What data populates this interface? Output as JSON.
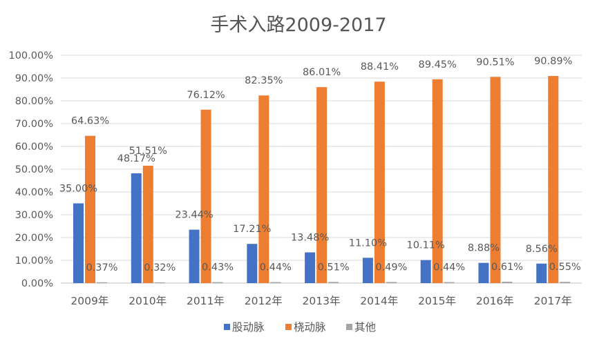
{
  "chart_data": {
    "type": "bar",
    "title": "手术入路2009-2017",
    "categories": [
      "2009年",
      "2010年",
      "2011年",
      "2012年",
      "2013年",
      "2014年",
      "2015年",
      "2016年",
      "2017年"
    ],
    "series": [
      {
        "name": "股动脉",
        "color": "#4472C4",
        "values": [
          35.0,
          48.17,
          23.44,
          17.21,
          13.48,
          11.1,
          10.11,
          8.88,
          8.56
        ],
        "labels": [
          "35.00%",
          "48.17%",
          "23.44%",
          "17.21%",
          "13.48%",
          "11.10%",
          "10.11%",
          "8.88%",
          "8.56%"
        ]
      },
      {
        "name": "桡动脉",
        "color": "#ED7D31",
        "values": [
          64.63,
          51.51,
          76.12,
          82.35,
          86.01,
          88.41,
          89.45,
          90.51,
          90.89
        ],
        "labels": [
          "64.63%",
          "51.51%",
          "76.12%",
          "82.35%",
          "86.01%",
          "88.41%",
          "89.45%",
          "90.51%",
          "90.89%"
        ]
      },
      {
        "name": "其他",
        "color": "#A5A5A5",
        "values": [
          0.37,
          0.32,
          0.43,
          0.44,
          0.51,
          0.49,
          0.44,
          0.61,
          0.55
        ],
        "labels": [
          "0.37%",
          "0.32%",
          "0.43%",
          "0.44%",
          "0.51%",
          "0.49%",
          "0.44%",
          "0.61%",
          "0.55%"
        ]
      }
    ],
    "ylim": [
      0,
      100
    ],
    "yticks": [
      0,
      10,
      20,
      30,
      40,
      50,
      60,
      70,
      80,
      90,
      100
    ],
    "ytick_labels": [
      "0.00%",
      "10.00%",
      "20.00%",
      "30.00%",
      "40.00%",
      "50.00%",
      "60.00%",
      "70.00%",
      "80.00%",
      "90.00%",
      "100.00%"
    ],
    "xlabel": "",
    "ylabel": "",
    "grid": true,
    "legend_position": "bottom",
    "gridline_color": "#D9D9D9",
    "axis_color": "#BFBFBF"
  }
}
